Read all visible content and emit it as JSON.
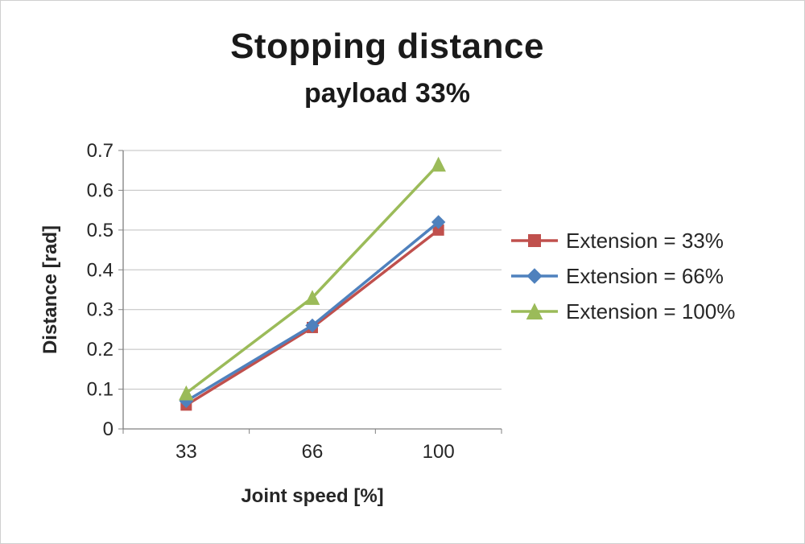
{
  "chart_data": {
    "type": "line",
    "title": "Stopping distance",
    "subtitle": "payload 33%",
    "xlabel": "Joint speed [%]",
    "ylabel": "Distance [rad]",
    "categories": [
      "33",
      "66",
      "100"
    ],
    "series": [
      {
        "name": "Extension = 33%",
        "color": "#C0504D",
        "marker": "square",
        "values": [
          0.06,
          0.255,
          0.5
        ]
      },
      {
        "name": "Extension = 66%",
        "color": "#4F81BD",
        "marker": "diamond",
        "values": [
          0.07,
          0.26,
          0.52
        ]
      },
      {
        "name": "Extension = 100%",
        "color": "#9BBB59",
        "marker": "triangle",
        "values": [
          0.09,
          0.33,
          0.665
        ]
      }
    ],
    "ylim": [
      0,
      0.7
    ],
    "ytick": 0.1,
    "grid": true,
    "legend_position": "right",
    "gridline_color": "#bfbfbf",
    "axis_color": "#808080",
    "tick_label_color": "#262626"
  }
}
